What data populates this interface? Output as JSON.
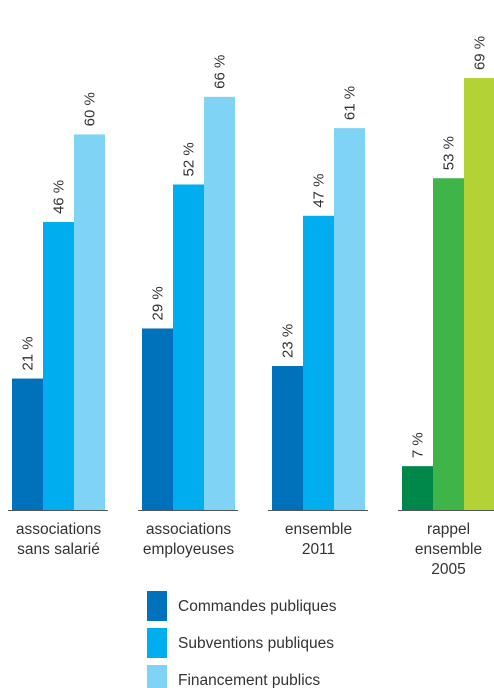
{
  "chart_data": {
    "type": "bar",
    "ylim": [
      0,
      100
    ],
    "value_suffix": " %",
    "groups": [
      {
        "label_lines": [
          "associations",
          "sans salarié"
        ],
        "values": [
          21,
          46,
          60
        ],
        "colors": [
          "#0072bc",
          "#00aeef",
          "#7fd4f6"
        ]
      },
      {
        "label_lines": [
          "associations",
          "employeuses"
        ],
        "values": [
          29,
          52,
          66
        ],
        "colors": [
          "#0072bc",
          "#00aeef",
          "#7fd4f6"
        ]
      },
      {
        "label_lines": [
          "ensemble",
          "2011"
        ],
        "values": [
          23,
          47,
          61
        ],
        "colors": [
          "#0072bc",
          "#00aeef",
          "#7fd4f6"
        ]
      },
      {
        "label_lines": [
          "rappel",
          "ensemble",
          "2005"
        ],
        "values": [
          7,
          53,
          69
        ],
        "colors": [
          "#00874a",
          "#3fb549",
          "#b2d235"
        ]
      }
    ],
    "legend": [
      {
        "name": "Commandes publiques",
        "color": "#0072bc"
      },
      {
        "name": "Subventions publiques",
        "color": "#00aeef"
      },
      {
        "name": "Financement publics",
        "color": "#7fd4f6"
      }
    ]
  }
}
